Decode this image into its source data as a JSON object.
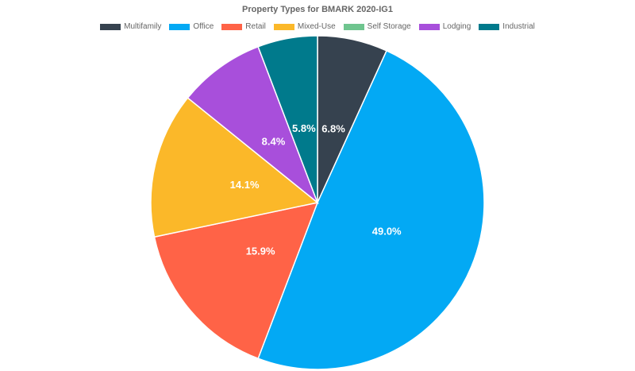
{
  "chart_data": {
    "type": "pie",
    "title": "Property Types for BMARK 2020-IG1",
    "legend_position": "top",
    "slices": [
      {
        "name": "Multifamily",
        "value": 6.8,
        "label": "6.8%",
        "color": "#36424f"
      },
      {
        "name": "Office",
        "value": 49.0,
        "label": "49.0%",
        "color": "#03a9f4"
      },
      {
        "name": "Retail",
        "value": 15.9,
        "label": "15.9%",
        "color": "#ff6347"
      },
      {
        "name": "Mixed-Use",
        "value": 14.1,
        "label": "14.1%",
        "color": "#fbb829"
      },
      {
        "name": "Self Storage",
        "value": 0,
        "label": "",
        "color": "#6fc58f"
      },
      {
        "name": "Lodging",
        "value": 8.4,
        "label": "8.4%",
        "color": "#a84fdb"
      },
      {
        "name": "Industrial",
        "value": 5.8,
        "label": "5.8%",
        "color": "#007a8c"
      }
    ]
  }
}
